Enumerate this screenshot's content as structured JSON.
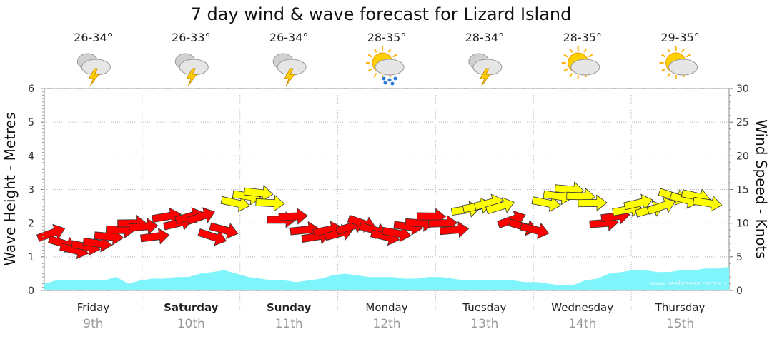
{
  "chart_data": {
    "type": "line",
    "title": "7 day wind & wave forecast for Lizard Island",
    "ylabel_left": "Wave Height - Metres",
    "ylabel_right": "Wind Speed - Knots",
    "ylim_left": [
      0,
      6
    ],
    "ylim_right": [
      0,
      30
    ],
    "yticks_left": [
      "0",
      "1",
      "2",
      "3",
      "4",
      "5",
      "6"
    ],
    "yticks_right": [
      "0",
      "5",
      "10",
      "15",
      "20",
      "25",
      "30"
    ],
    "grid": true,
    "credit": "www.seabreeze.com.au",
    "days": [
      {
        "name": "Friday",
        "date": "9th",
        "bold": false,
        "temp": "26-34°",
        "icon": "thunderstorm-icon"
      },
      {
        "name": "Saturday",
        "date": "10th",
        "bold": true,
        "temp": "26-33°",
        "icon": "thunderstorm-icon"
      },
      {
        "name": "Sunday",
        "date": "11th",
        "bold": true,
        "temp": "26-34°",
        "icon": "thunderstorm-icon"
      },
      {
        "name": "Monday",
        "date": "12th",
        "bold": false,
        "temp": "28-35°",
        "icon": "sun-rain-icon"
      },
      {
        "name": "Tuesday",
        "date": "13th",
        "bold": false,
        "temp": "28-34°",
        "icon": "thunderstorm-icon"
      },
      {
        "name": "Wednesday",
        "date": "14th",
        "bold": false,
        "temp": "28-35°",
        "icon": "sun-cloud-icon"
      },
      {
        "name": "Thursday",
        "date": "15th",
        "bold": false,
        "temp": "29-35°",
        "icon": "sun-cloud-icon"
      }
    ],
    "wave_height_m": [
      0.2,
      0.3,
      0.3,
      0.3,
      0.3,
      0.3,
      0.4,
      0.2,
      0.3,
      0.35,
      0.35,
      0.4,
      0.4,
      0.5,
      0.55,
      0.6,
      0.5,
      0.4,
      0.35,
      0.3,
      0.3,
      0.25,
      0.3,
      0.35,
      0.45,
      0.5,
      0.45,
      0.4,
      0.4,
      0.4,
      0.35,
      0.35,
      0.4,
      0.4,
      0.35,
      0.3,
      0.3,
      0.3,
      0.3,
      0.3,
      0.25,
      0.25,
      0.2,
      0.15,
      0.15,
      0.3,
      0.35,
      0.5,
      0.55,
      0.6,
      0.6,
      0.55,
      0.55,
      0.6,
      0.6,
      0.65,
      0.65,
      0.7
    ],
    "wind_knots": [
      8.5,
      7,
      6,
      6.5,
      7,
      8,
      9,
      10,
      9.5,
      8,
      11,
      10,
      11,
      11,
      8,
      9,
      13,
      14,
      14.5,
      13,
      10.5,
      11,
      9,
      8,
      9,
      8.5,
      9.5,
      10,
      9,
      8,
      8.5,
      9.5,
      10,
      11,
      10,
      9,
      12,
      12.5,
      13,
      12.5,
      10.5,
      9.5,
      9,
      13,
      14,
      15,
      14,
      13,
      10,
      11,
      12,
      13,
      12,
      12.5,
      14,
      13.5,
      14,
      13
    ],
    "wind_series_colors": {
      "strong": "#ffff00",
      "moderate": "#ff0000"
    },
    "wave_color": "#7ff5fb"
  }
}
